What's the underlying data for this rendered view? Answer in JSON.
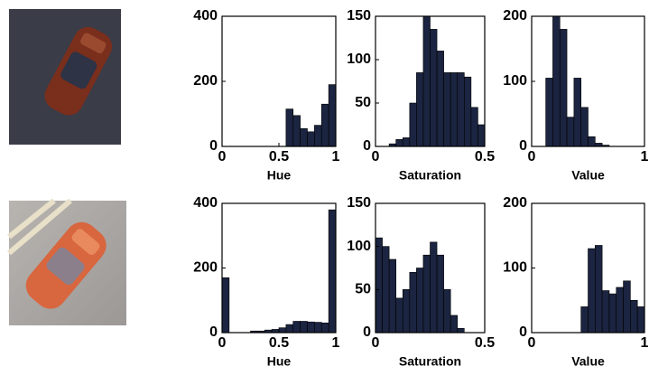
{
  "chart_data": [
    {
      "type": "histogram",
      "xlabel": "Hue",
      "color": "#1b2440",
      "bins": [
        0,
        0.0625,
        0.125,
        0.1875,
        0.25,
        0.3125,
        0.375,
        0.4375,
        0.5,
        0.5625,
        0.625,
        0.6875,
        0.75,
        0.8125,
        0.875,
        0.9375,
        1
      ],
      "values": [
        0,
        0,
        0,
        0,
        0,
        0,
        0,
        0,
        0,
        115,
        95,
        55,
        45,
        65,
        130,
        190
      ],
      "xlim": [
        0,
        1
      ],
      "ylim": [
        0,
        400
      ],
      "xticks": [
        0,
        0.5,
        1
      ],
      "yticks": [
        0,
        200,
        400
      ]
    },
    {
      "type": "histogram",
      "xlabel": "Saturation",
      "color": "#1b2440",
      "bins": [
        0,
        0.03125,
        0.0625,
        0.09375,
        0.125,
        0.15625,
        0.1875,
        0.21875,
        0.25,
        0.28125,
        0.3125,
        0.34375,
        0.375,
        0.40625,
        0.4375,
        0.46875,
        0.5
      ],
      "values": [
        0,
        0,
        3,
        8,
        10,
        50,
        85,
        150,
        135,
        110,
        85,
        85,
        85,
        80,
        45,
        25
      ],
      "xlim": [
        0,
        0.5
      ],
      "ylim": [
        0,
        150
      ],
      "xticks": [
        0,
        0.5
      ],
      "yticks": [
        0,
        50,
        100,
        150
      ]
    },
    {
      "type": "histogram",
      "xlabel": "Value",
      "color": "#1b2440",
      "bins": [
        0,
        0.0625,
        0.125,
        0.1875,
        0.25,
        0.3125,
        0.375,
        0.4375,
        0.5,
        0.5625,
        0.625,
        0.6875,
        0.75,
        0.8125,
        0.875,
        0.9375,
        1
      ],
      "values": [
        0,
        0,
        105,
        200,
        180,
        45,
        105,
        60,
        15,
        5,
        2,
        0,
        0,
        0,
        0,
        0
      ],
      "xlim": [
        0,
        1
      ],
      "ylim": [
        0,
        200
      ],
      "xticks": [
        0,
        1
      ],
      "yticks": [
        0,
        100,
        200
      ]
    },
    {
      "type": "histogram",
      "xlabel": "Hue",
      "color": "#1b2440",
      "bins": [
        0,
        0.0625,
        0.125,
        0.1875,
        0.25,
        0.3125,
        0.375,
        0.4375,
        0.5,
        0.5625,
        0.625,
        0.6875,
        0.75,
        0.8125,
        0.875,
        0.9375,
        1
      ],
      "values": [
        170,
        0,
        0,
        0,
        5,
        5,
        8,
        10,
        15,
        25,
        35,
        35,
        33,
        32,
        30,
        380
      ],
      "xlim": [
        0,
        1
      ],
      "ylim": [
        0,
        400
      ],
      "xticks": [
        0,
        0.5,
        1
      ],
      "yticks": [
        0,
        200,
        400
      ]
    },
    {
      "type": "histogram",
      "xlabel": "Saturation",
      "color": "#1b2440",
      "bins": [
        0,
        0.03125,
        0.0625,
        0.09375,
        0.125,
        0.15625,
        0.1875,
        0.21875,
        0.25,
        0.28125,
        0.3125,
        0.34375,
        0.375,
        0.40625,
        0.4375,
        0.46875,
        0.5
      ],
      "values": [
        110,
        100,
        85,
        40,
        50,
        70,
        75,
        90,
        105,
        90,
        50,
        20,
        5,
        0,
        0,
        0
      ],
      "xlim": [
        0,
        0.5
      ],
      "ylim": [
        0,
        150
      ],
      "xticks": [
        0,
        0.5
      ],
      "yticks": [
        0,
        50,
        100,
        150
      ]
    },
    {
      "type": "histogram",
      "xlabel": "Value",
      "color": "#1b2440",
      "bins": [
        0,
        0.0625,
        0.125,
        0.1875,
        0.25,
        0.3125,
        0.375,
        0.4375,
        0.5,
        0.5625,
        0.625,
        0.6875,
        0.75,
        0.8125,
        0.875,
        0.9375,
        1
      ],
      "values": [
        0,
        0,
        0,
        0,
        0,
        0,
        0,
        40,
        130,
        135,
        65,
        60,
        70,
        80,
        50,
        40
      ],
      "xlim": [
        0,
        1
      ],
      "ylim": [
        0,
        200
      ],
      "xticks": [
        0,
        1
      ],
      "yticks": [
        0,
        100,
        200
      ]
    }
  ]
}
